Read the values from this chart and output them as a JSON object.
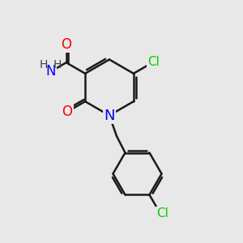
{
  "bg_color": "#e8e8e8",
  "bond_color": "#1a1a1a",
  "bond_width": 1.8,
  "atom_colors": {
    "N": "#0000ff",
    "O": "#ff0000",
    "Cl": "#00cc00",
    "H": "#404040",
    "C": "#1a1a1a"
  },
  "font_size_atom": 12,
  "font_size_h": 10,
  "font_size_cl": 11
}
